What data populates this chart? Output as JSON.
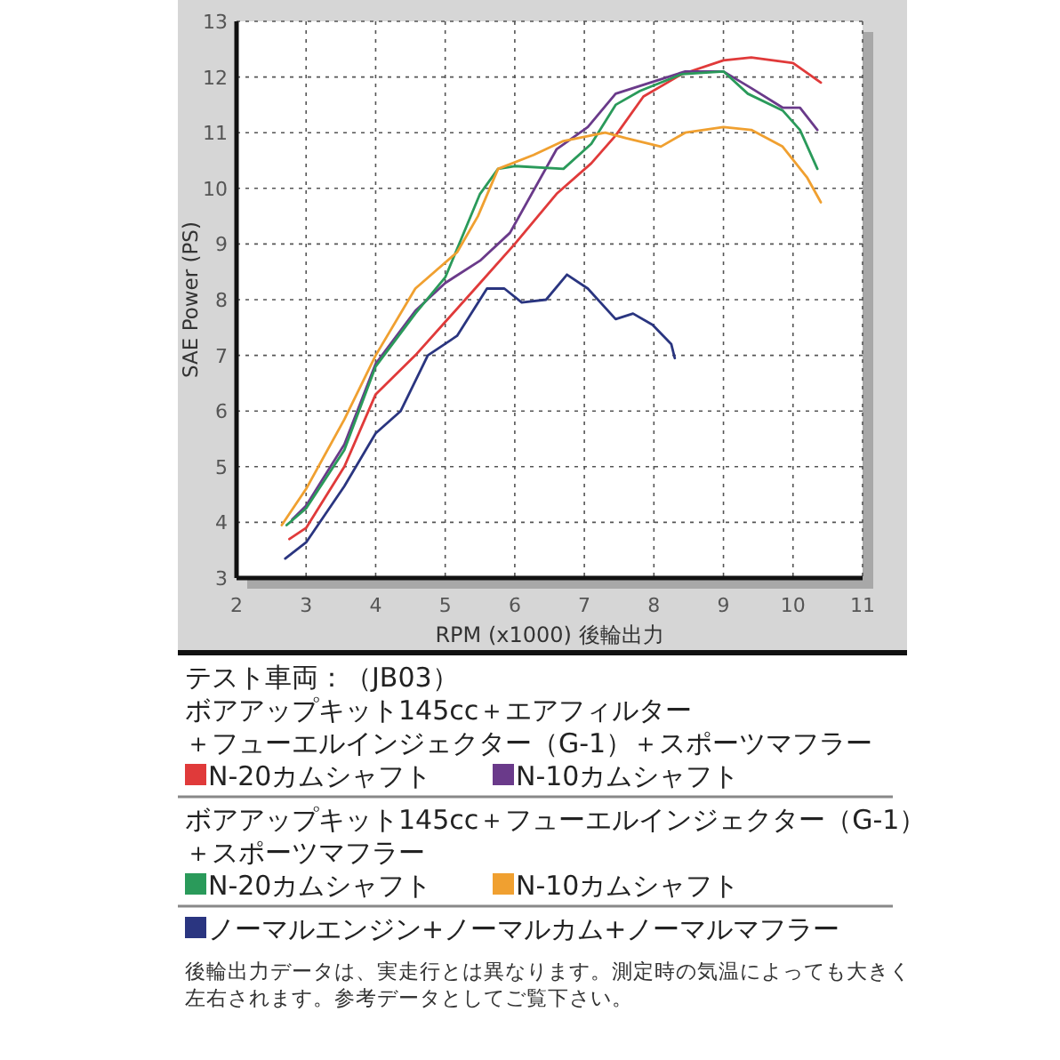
{
  "chart_data": {
    "type": "line",
    "xlabel": "RPM (x1000) 後輪出力",
    "ylabel": "SAE Power (PS)",
    "xlim": [
      2,
      11
    ],
    "xticks": [
      2,
      3,
      4,
      5,
      6,
      7,
      8,
      9,
      10,
      11
    ],
    "ylim": [
      3,
      13
    ],
    "yticks": [
      3,
      4,
      5,
      6,
      7,
      8,
      9,
      10,
      11,
      12,
      13
    ],
    "grid": true,
    "legend": "bottom",
    "line_style": "solid",
    "marker": "none",
    "annotations": [
      "テスト車両：（JB03）",
      "ボアアップキット145cc＋エアフィルター＋フューエルインジェクター（G-1）＋スポーツマフラー",
      "ボアアップキット145cc＋フューエルインジェクター（G-1）＋スポーツマフラー",
      "後輪出力データは、実走行とは異なります。測定時の気温によっても大きく左右されます。参考データとしてご覧下さい。"
    ],
    "series": [
      {
        "name": "N-20カムシャフト",
        "color": "#e03a3a",
        "x": [
          2.76,
          3,
          3.55,
          4,
          4.57,
          5,
          5.43,
          6,
          6.6,
          7.1,
          7.45,
          7.85,
          8.4,
          9,
          9.4,
          10,
          10.4
        ],
        "values": [
          3.7,
          3.9,
          5,
          6.3,
          7,
          7.6,
          8.2,
          9,
          9.9,
          10.45,
          10.95,
          11.65,
          12.05,
          12.3,
          12.35,
          12.25,
          11.9
        ]
      },
      {
        "name": "N-10カムシャフト",
        "color": "#6a3a8a",
        "x": [
          2.8,
          3,
          3.55,
          4,
          4.57,
          5,
          5.5,
          5.93,
          6.6,
          7.05,
          7.45,
          7.95,
          8.45,
          9,
          9.4,
          9.85,
          10.1,
          10.35
        ],
        "values": [
          4.05,
          4.3,
          5.4,
          6.85,
          7.8,
          8.3,
          8.7,
          9.2,
          10.7,
          11.1,
          11.7,
          11.9,
          12.1,
          12.1,
          11.8,
          11.45,
          11.45,
          11.05
        ]
      },
      {
        "name": "N-20カムシャフト",
        "color": "#2a9a5a",
        "x": [
          2.72,
          3,
          3.55,
          4,
          4.57,
          5,
          5.5,
          5.76,
          6,
          6.7,
          7.1,
          7.45,
          7.8,
          8.4,
          9,
          9.35,
          9.85,
          10.1,
          10.35
        ],
        "values": [
          3.95,
          4.25,
          5.3,
          6.8,
          7.75,
          8.4,
          9.9,
          10.35,
          10.4,
          10.35,
          10.8,
          11.5,
          11.75,
          12.05,
          12.1,
          11.7,
          11.4,
          11.05,
          10.35
        ]
      },
      {
        "name": "N-10カムシャフト",
        "color": "#f0a030",
        "x": [
          2.65,
          3,
          3.55,
          4,
          4.57,
          5.17,
          5.47,
          5.76,
          6.27,
          6.7,
          7.3,
          7.6,
          8.1,
          8.45,
          9,
          9.4,
          9.85,
          10.2,
          10.4
        ],
        "values": [
          3.95,
          4.6,
          5.85,
          7,
          8.2,
          8.85,
          9.5,
          10.35,
          10.6,
          10.85,
          11,
          10.9,
          10.75,
          11,
          11.1,
          11.05,
          10.75,
          10.2,
          9.75
        ]
      },
      {
        "name": "ノーマルエンジン+ノーマルカム+ノーマルマフラー",
        "color": "#2a3580",
        "x": [
          2.7,
          3,
          3.55,
          4,
          4.36,
          4.75,
          5.17,
          5.6,
          5.85,
          6.1,
          6.45,
          6.75,
          7.05,
          7.45,
          7.7,
          7.98,
          8.25,
          8.3
        ],
        "values": [
          3.35,
          3.64,
          4.65,
          5.6,
          6,
          7,
          7.35,
          8.2,
          8.2,
          7.95,
          8,
          8.45,
          8.2,
          7.65,
          7.75,
          7.55,
          7.2,
          6.95
        ]
      }
    ]
  }
}
